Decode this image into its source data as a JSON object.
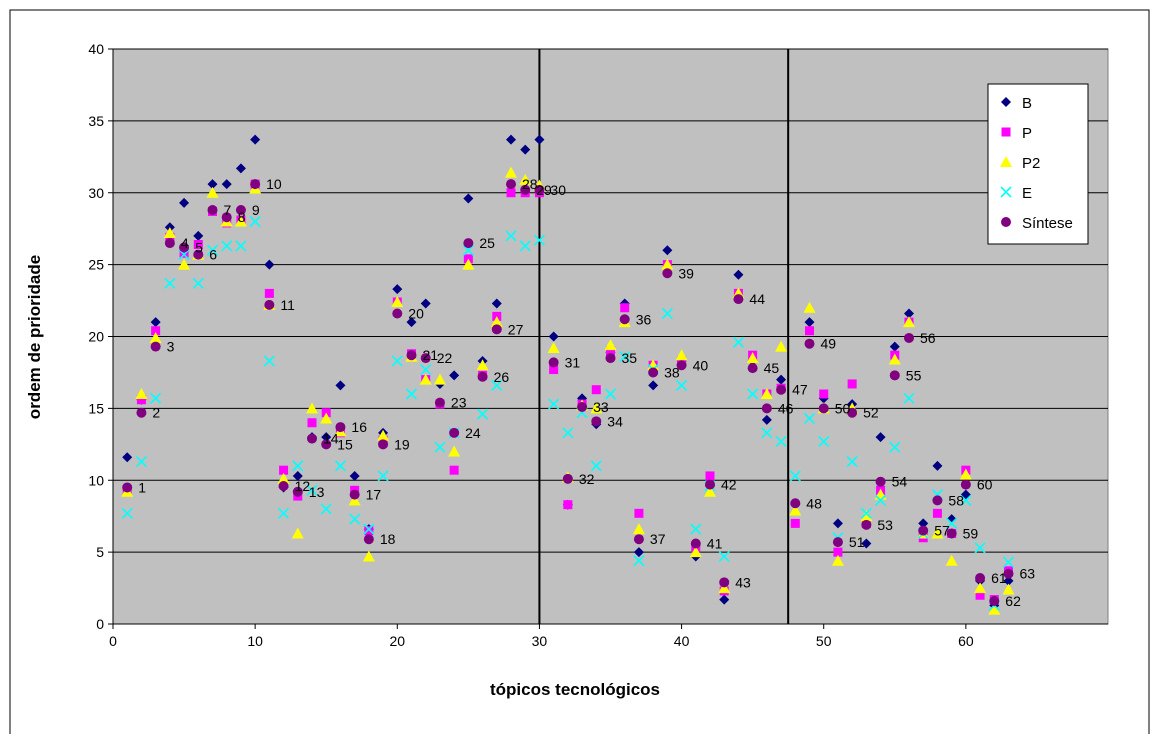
{
  "chart_data": {
    "type": "scatter",
    "xlabel": "tópicos tecnológicos",
    "ylabel": "ordem de prioridade",
    "xlim": [
      0,
      70
    ],
    "ylim": [
      0,
      40
    ],
    "xticks": [
      0,
      10,
      20,
      30,
      40,
      50,
      60
    ],
    "yticks": [
      0,
      5,
      10,
      15,
      20,
      25,
      30,
      35,
      40
    ],
    "grid": "horizontal",
    "legend_position": "top-right",
    "vertical_lines": [
      30,
      47.5
    ],
    "colors": {
      "plot_bg": "#c0c0c0",
      "B": "#000080",
      "P": "#ff00ff",
      "P2": "#ffff00",
      "E": "#00ffff",
      "Sintese": "#800080"
    },
    "series": [
      {
        "name": "B",
        "marker": "diamond",
        "x": [
          1,
          2,
          3,
          4,
          5,
          6,
          7,
          8,
          9,
          10,
          11,
          12,
          13,
          14,
          15,
          16,
          17,
          18,
          19,
          20,
          21,
          22,
          23,
          24,
          25,
          26,
          27,
          28,
          29,
          30,
          31,
          32,
          33,
          34,
          35,
          36,
          37,
          38,
          39,
          40,
          41,
          42,
          43,
          44,
          45,
          46,
          47,
          48,
          49,
          50,
          51,
          52,
          53,
          54,
          55,
          56,
          57,
          58,
          59,
          60,
          61,
          62,
          63
        ],
        "y": [
          11.6,
          15.6,
          21.0,
          27.6,
          29.3,
          27.0,
          30.6,
          30.6,
          31.7,
          33.7,
          25.0,
          9.5,
          10.3,
          13.0,
          13.0,
          16.6,
          10.3,
          6.6,
          13.3,
          23.3,
          21.0,
          22.3,
          16.7,
          17.3,
          29.6,
          18.3,
          22.3,
          33.7,
          33.0,
          33.7,
          20.0,
          8.3,
          15.7,
          13.9,
          18.9,
          22.3,
          5.0,
          16.6,
          26.0,
          18.3,
          4.7,
          9.6,
          1.7,
          24.3,
          18.3,
          14.2,
          17.0,
          8.3,
          21.0,
          15.7,
          7.0,
          15.3,
          5.6,
          13.0,
          19.3,
          21.6,
          7.0,
          11.0,
          7.3,
          9.0,
          3.0,
          1.3,
          3.0
        ]
      },
      {
        "name": "P",
        "marker": "square",
        "x": [
          1,
          2,
          3,
          4,
          5,
          6,
          7,
          8,
          9,
          10,
          11,
          12,
          13,
          14,
          15,
          16,
          17,
          18,
          19,
          20,
          21,
          22,
          23,
          24,
          25,
          26,
          27,
          28,
          29,
          30,
          31,
          32,
          33,
          34,
          35,
          36,
          37,
          38,
          39,
          40,
          41,
          42,
          43,
          44,
          45,
          46,
          47,
          48,
          49,
          50,
          51,
          52,
          53,
          54,
          55,
          56,
          57,
          58,
          59,
          60,
          61,
          62,
          63
        ],
        "y": [
          9.3,
          15.6,
          20.4,
          26.9,
          25.8,
          26.4,
          28.7,
          27.9,
          28.1,
          30.6,
          23.0,
          10.7,
          8.9,
          14.0,
          14.7,
          13.3,
          9.3,
          6.5,
          12.8,
          22.4,
          18.8,
          17.0,
          15.3,
          10.7,
          25.4,
          17.3,
          21.4,
          30.0,
          30.0,
          30.0,
          17.7,
          8.3,
          15.3,
          16.3,
          19.0,
          22.0,
          7.7,
          18.0,
          25.0,
          18.3,
          5.3,
          10.3,
          2.3,
          23.0,
          18.7,
          16.0,
          16.4,
          7.0,
          20.4,
          16.0,
          5.0,
          16.7,
          7.0,
          9.3,
          18.7,
          21.0,
          6.0,
          7.7,
          6.3,
          10.7,
          2.0,
          1.7,
          3.7
        ]
      },
      {
        "name": "P2",
        "marker": "triangle",
        "x": [
          1,
          2,
          3,
          4,
          5,
          6,
          7,
          8,
          9,
          10,
          11,
          12,
          13,
          14,
          15,
          16,
          17,
          18,
          19,
          20,
          21,
          22,
          23,
          24,
          25,
          26,
          27,
          28,
          29,
          30,
          31,
          32,
          33,
          34,
          35,
          36,
          37,
          38,
          39,
          40,
          41,
          42,
          43,
          44,
          45,
          46,
          47,
          48,
          49,
          50,
          51,
          52,
          53,
          54,
          55,
          56,
          57,
          58,
          59,
          60,
          61,
          62,
          63
        ],
        "y": [
          9.2,
          16.0,
          19.9,
          27.2,
          25.0,
          25.7,
          30.0,
          28.0,
          28.0,
          30.3,
          22.2,
          10.1,
          6.3,
          15.0,
          14.3,
          13.4,
          8.6,
          4.7,
          13.1,
          22.4,
          18.6,
          17.0,
          17.0,
          12.0,
          25.0,
          18.0,
          21.0,
          31.4,
          30.9,
          30.5,
          19.2,
          10.2,
          15.2,
          15.0,
          19.4,
          21.0,
          6.6,
          18.0,
          25.0,
          18.7,
          5.0,
          9.2,
          2.5,
          23.0,
          18.5,
          16.0,
          19.3,
          7.9,
          22.0,
          15.0,
          4.4,
          15.0,
          7.5,
          9.0,
          18.4,
          21.0,
          6.3,
          6.3,
          4.4,
          10.4,
          2.5,
          1.0,
          2.4
        ]
      },
      {
        "name": "E",
        "marker": "cross",
        "x": [
          1,
          2,
          3,
          4,
          5,
          6,
          7,
          8,
          9,
          10,
          11,
          12,
          13,
          14,
          15,
          16,
          17,
          18,
          19,
          20,
          21,
          22,
          23,
          24,
          25,
          26,
          27,
          28,
          29,
          30,
          31,
          32,
          33,
          34,
          35,
          36,
          37,
          38,
          39,
          40,
          41,
          42,
          43,
          44,
          45,
          46,
          47,
          48,
          49,
          50,
          51,
          52,
          53,
          54,
          55,
          56,
          57,
          58,
          59,
          60,
          61,
          62,
          63
        ],
        "y": [
          7.7,
          11.3,
          15.7,
          23.7,
          25.7,
          23.7,
          26.0,
          26.3,
          26.3,
          28.0,
          18.3,
          7.7,
          11.0,
          9.3,
          8.0,
          11.0,
          7.3,
          6.6,
          10.3,
          18.3,
          16.0,
          17.7,
          12.3,
          13.3,
          26.0,
          14.6,
          16.6,
          27.0,
          26.3,
          26.7,
          15.3,
          13.3,
          14.7,
          11.0,
          16.0,
          18.6,
          4.4,
          17.7,
          21.6,
          16.6,
          6.6,
          9.6,
          4.7,
          19.6,
          16.0,
          13.3,
          12.7,
          10.3,
          14.3,
          12.7,
          6.0,
          11.3,
          7.7,
          8.6,
          12.3,
          15.7,
          6.3,
          9.0,
          7.0,
          8.6,
          5.3,
          1.3,
          4.3
        ]
      },
      {
        "name": "Síntese",
        "marker": "circle",
        "x": [
          1,
          2,
          3,
          4,
          5,
          6,
          7,
          8,
          9,
          10,
          11,
          12,
          13,
          14,
          15,
          16,
          17,
          18,
          19,
          20,
          21,
          22,
          23,
          24,
          25,
          26,
          27,
          28,
          29,
          30,
          31,
          32,
          33,
          34,
          35,
          36,
          37,
          38,
          39,
          40,
          41,
          42,
          43,
          44,
          45,
          46,
          47,
          48,
          49,
          50,
          51,
          52,
          53,
          54,
          55,
          56,
          57,
          58,
          59,
          60,
          61,
          62,
          63
        ],
        "y": [
          9.5,
          14.7,
          19.3,
          26.5,
          26.2,
          25.7,
          28.8,
          28.3,
          28.8,
          30.6,
          22.2,
          9.6,
          9.2,
          12.9,
          12.5,
          13.7,
          9.0,
          5.9,
          12.5,
          21.6,
          18.7,
          18.5,
          15.4,
          13.3,
          26.5,
          17.2,
          20.5,
          30.6,
          30.2,
          30.2,
          18.2,
          10.1,
          15.1,
          14.1,
          18.5,
          21.2,
          5.9,
          17.5,
          24.4,
          18.0,
          5.6,
          9.7,
          2.9,
          22.6,
          17.8,
          15.0,
          16.3,
          8.4,
          19.5,
          15.0,
          5.7,
          14.7,
          6.9,
          9.9,
          17.3,
          19.9,
          6.5,
          8.6,
          6.3,
          9.7,
          3.2,
          1.6,
          3.5
        ]
      }
    ],
    "point_labels": [
      {
        "text": "1",
        "x": 1,
        "y": 9.5
      },
      {
        "text": "2",
        "x": 2,
        "y": 14.7
      },
      {
        "text": "3",
        "x": 3,
        "y": 19.3
      },
      {
        "text": "4",
        "x": 4,
        "y": 26.5
      },
      {
        "text": "5",
        "x": 5,
        "y": 26.2
      },
      {
        "text": "6",
        "x": 6,
        "y": 25.7
      },
      {
        "text": "7",
        "x": 7,
        "y": 28.8
      },
      {
        "text": "8",
        "x": 8,
        "y": 28.3
      },
      {
        "text": "9",
        "x": 9,
        "y": 28.8
      },
      {
        "text": "10",
        "x": 10,
        "y": 30.6
      },
      {
        "text": "11",
        "x": 11,
        "y": 22.2
      },
      {
        "text": "12",
        "x": 12,
        "y": 9.6
      },
      {
        "text": "13",
        "x": 13,
        "y": 9.2
      },
      {
        "text": "14",
        "x": 14,
        "y": 12.9
      },
      {
        "text": "15",
        "x": 15,
        "y": 12.5
      },
      {
        "text": "16",
        "x": 16,
        "y": 13.7
      },
      {
        "text": "17",
        "x": 17,
        "y": 9.0
      },
      {
        "text": "18",
        "x": 18,
        "y": 5.9
      },
      {
        "text": "19",
        "x": 19,
        "y": 12.5
      },
      {
        "text": "20",
        "x": 20,
        "y": 21.6
      },
      {
        "text": "21",
        "x": 21,
        "y": 18.7
      },
      {
        "text": "22",
        "x": 22,
        "y": 18.5
      },
      {
        "text": "23",
        "x": 23,
        "y": 15.4
      },
      {
        "text": "24",
        "x": 24,
        "y": 13.3
      },
      {
        "text": "25",
        "x": 25,
        "y": 26.5
      },
      {
        "text": "26",
        "x": 26,
        "y": 17.2
      },
      {
        "text": "27",
        "x": 27,
        "y": 20.5
      },
      {
        "text": "28",
        "x": 28,
        "y": 30.6
      },
      {
        "text": "29",
        "x": 29,
        "y": 30.2
      },
      {
        "text": "30",
        "x": 30,
        "y": 30.2
      },
      {
        "text": "31",
        "x": 31,
        "y": 18.2
      },
      {
        "text": "32",
        "x": 32,
        "y": 10.1
      },
      {
        "text": "33",
        "x": 33,
        "y": 15.1
      },
      {
        "text": "34",
        "x": 34,
        "y": 14.1
      },
      {
        "text": "35",
        "x": 35,
        "y": 18.5
      },
      {
        "text": "36",
        "x": 36,
        "y": 21.2
      },
      {
        "text": "37",
        "x": 37,
        "y": 5.9
      },
      {
        "text": "38",
        "x": 38,
        "y": 17.5
      },
      {
        "text": "39",
        "x": 39,
        "y": 24.4
      },
      {
        "text": "40",
        "x": 40,
        "y": 18.0
      },
      {
        "text": "41",
        "x": 41,
        "y": 5.6
      },
      {
        "text": "42",
        "x": 42,
        "y": 9.7
      },
      {
        "text": "43",
        "x": 43,
        "y": 2.9
      },
      {
        "text": "44",
        "x": 44,
        "y": 22.6
      },
      {
        "text": "45",
        "x": 45,
        "y": 17.8
      },
      {
        "text": "46",
        "x": 46,
        "y": 15.0
      },
      {
        "text": "47",
        "x": 47,
        "y": 16.3
      },
      {
        "text": "48",
        "x": 48,
        "y": 8.4
      },
      {
        "text": "49",
        "x": 49,
        "y": 19.5
      },
      {
        "text": "50",
        "x": 50,
        "y": 15.0
      },
      {
        "text": "51",
        "x": 51,
        "y": 5.7
      },
      {
        "text": "52",
        "x": 52,
        "y": 14.7
      },
      {
        "text": "53",
        "x": 53,
        "y": 6.9
      },
      {
        "text": "54",
        "x": 54,
        "y": 9.9
      },
      {
        "text": "55",
        "x": 55,
        "y": 17.3
      },
      {
        "text": "56",
        "x": 56,
        "y": 19.9
      },
      {
        "text": "57",
        "x": 57,
        "y": 6.5
      },
      {
        "text": "58",
        "x": 58,
        "y": 8.6
      },
      {
        "text": "59",
        "x": 59,
        "y": 6.3
      },
      {
        "text": "60",
        "x": 60,
        "y": 9.7
      },
      {
        "text": "61",
        "x": 61,
        "y": 3.2
      },
      {
        "text": "62",
        "x": 62,
        "y": 1.6
      },
      {
        "text": "63",
        "x": 63,
        "y": 3.5
      }
    ]
  }
}
